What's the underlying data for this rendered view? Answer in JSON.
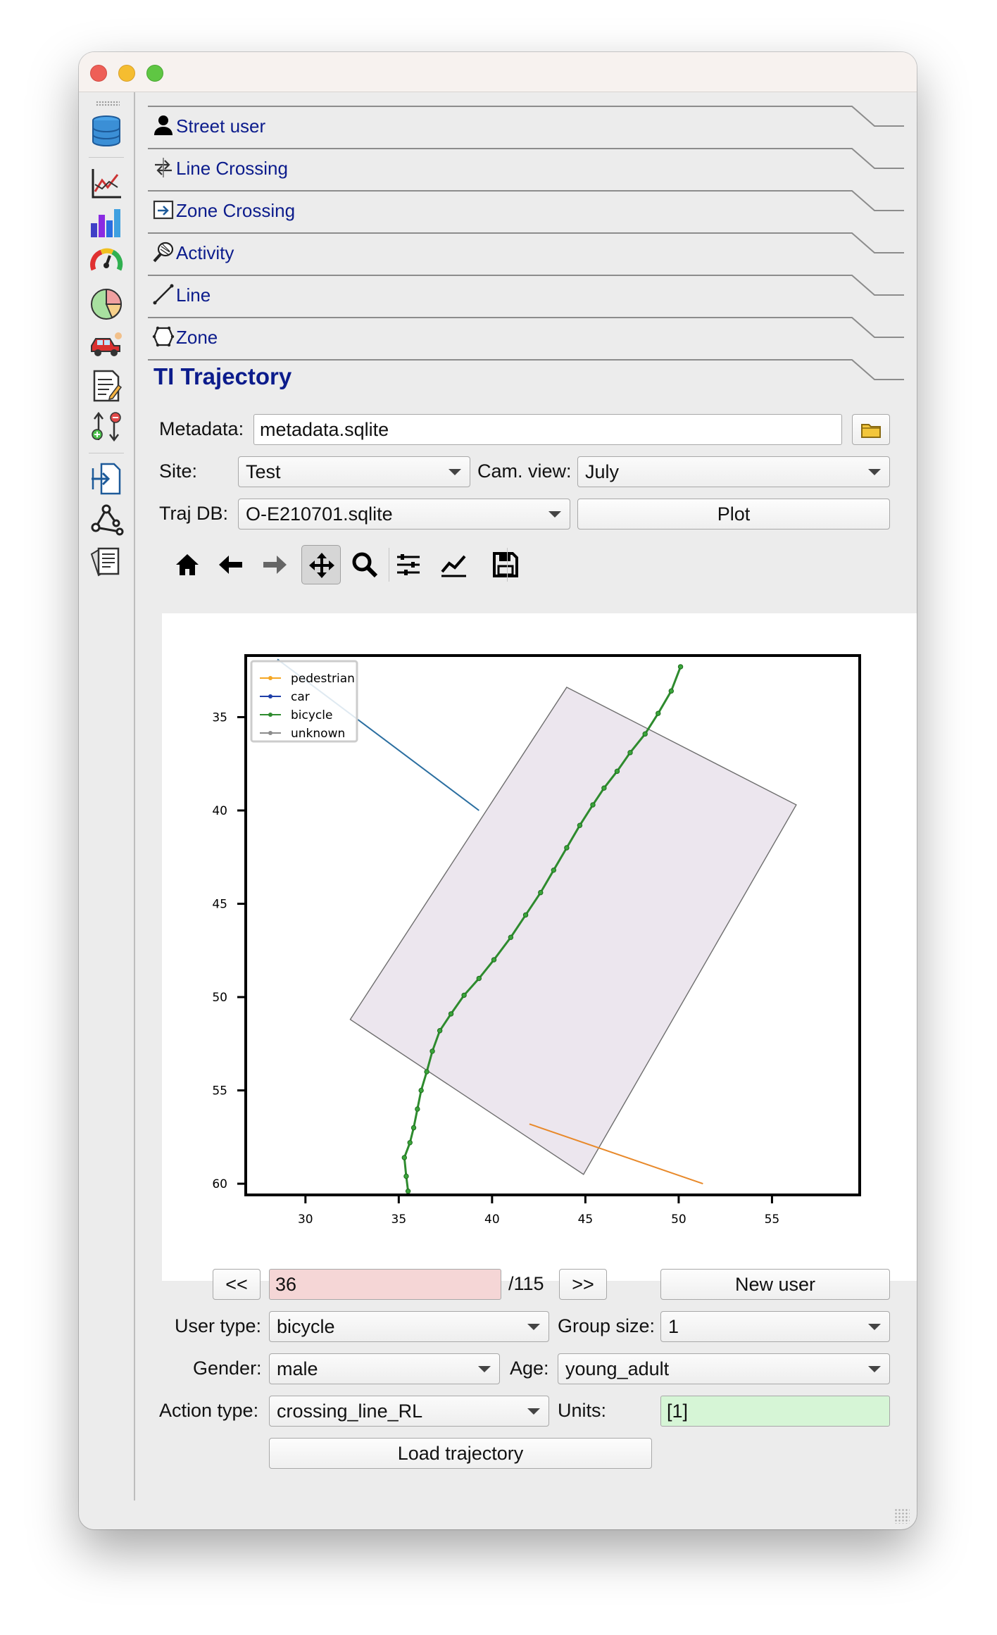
{
  "tabs": [
    {
      "label": "Street user",
      "icon": "person-icon"
    },
    {
      "label": "Line Crossing",
      "icon": "line-crossing-icon"
    },
    {
      "label": "Zone Crossing",
      "icon": "zone-crossing-icon"
    },
    {
      "label": "Activity",
      "icon": "activity-icon"
    },
    {
      "label": "Line",
      "icon": "line-icon"
    },
    {
      "label": "Zone",
      "icon": "zone-icon"
    }
  ],
  "active_tab": {
    "label": "TI Trajectory"
  },
  "sidebar": {
    "icons": [
      "database-icon",
      "line-chart-icon",
      "bar-chart-icon",
      "gauge-icon",
      "pie-chart-icon",
      "vehicle-icon",
      "report-icon",
      "compare-icon",
      "import-icon",
      "network-icon",
      "documents-icon"
    ]
  },
  "form": {
    "metadata_label": "Metadata:",
    "metadata_value": "metadata.sqlite",
    "site_label": "Site:",
    "site_value": "Test",
    "camview_label": "Cam. view:",
    "camview_value": "July",
    "trajdb_label": "Traj DB:",
    "trajdb_value": "O-E210701.sqlite",
    "plot_button": "Plot"
  },
  "toolbar": {
    "tools": [
      "home-icon",
      "back-arrow-icon",
      "forward-arrow-icon",
      "pan-icon",
      "zoom-icon",
      "configure-subplots-icon",
      "edit-axis-icon",
      "save-icon"
    ],
    "active_tool": "pan-icon"
  },
  "chart_data": {
    "type": "line",
    "title": "",
    "xlabel": "",
    "ylabel": "",
    "xlim": [
      26.8,
      59.7
    ],
    "ylim": [
      60.6,
      31.7
    ],
    "y_inverted": true,
    "xticks": [
      30,
      35,
      40,
      45,
      50,
      55
    ],
    "yticks": [
      35,
      40,
      45,
      50,
      55,
      60
    ],
    "legend": {
      "position": "top-left",
      "entries": [
        "pedestrian",
        "car",
        "bicycle",
        "unknown"
      ]
    },
    "colors": {
      "pedestrian": "#f5a623",
      "car": "#1f3fa8",
      "bicycle": "#2e8b2e",
      "unknown": "#8c8c8c",
      "zone_fill": "#ece6ee",
      "zone_edge": "#6e6e6e",
      "ped_line": "#e8892a",
      "car_line": "#2a6ea0"
    },
    "series": [
      {
        "name": "car",
        "x": [
          28.5,
          39.3
        ],
        "y": [
          31.9,
          40.0
        ]
      },
      {
        "name": "pedestrian",
        "x": [
          42.0,
          51.3
        ],
        "y": [
          56.8,
          60.0
        ]
      },
      {
        "name": "bicycle",
        "x": [
          35.5,
          35.4,
          35.3,
          35.6,
          35.8,
          36.0,
          36.2,
          36.5,
          36.8,
          37.2,
          37.8,
          38.5,
          39.3,
          40.1,
          41.0,
          41.8,
          42.6,
          43.3,
          44.0,
          44.7,
          45.4,
          46.0,
          46.7,
          47.4,
          48.2,
          48.9,
          49.6,
          50.1
        ],
        "y": [
          60.4,
          59.6,
          58.6,
          57.8,
          57.0,
          56.0,
          55.0,
          54.0,
          52.9,
          51.8,
          50.9,
          49.9,
          49.0,
          48.0,
          46.8,
          45.6,
          44.4,
          43.2,
          42.0,
          40.8,
          39.7,
          38.8,
          37.9,
          36.9,
          35.9,
          34.8,
          33.6,
          32.3
        ]
      }
    ],
    "zone": {
      "x": [
        32.4,
        44.0,
        56.3,
        44.9,
        32.4
      ],
      "y": [
        51.2,
        33.4,
        39.7,
        59.5,
        51.2
      ]
    }
  },
  "navigation": {
    "prev_label": "<<",
    "current_value": "36",
    "total_label": "/115",
    "next_label": ">>",
    "new_user_label": "New user"
  },
  "user": {
    "user_type_label": "User type:",
    "user_type_value": "bicycle",
    "group_size_label": "Group size:",
    "group_size_value": "1",
    "gender_label": "Gender:",
    "gender_value": "male",
    "age_label": "Age:",
    "age_value": "young_adult",
    "action_type_label": "Action type:",
    "action_type_value": "crossing_line_RL",
    "units_label": "Units:",
    "units_value": "[1]",
    "load_button": "Load trajectory"
  }
}
